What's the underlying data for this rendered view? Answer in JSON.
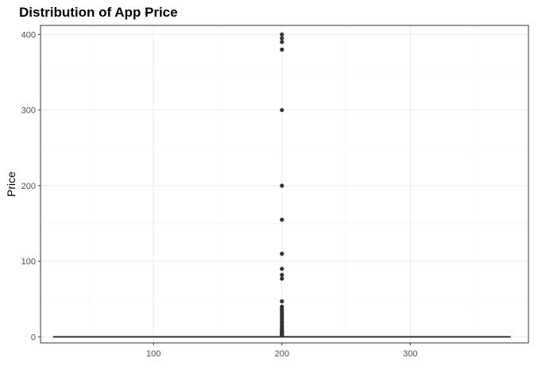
{
  "chart_data": {
    "type": "boxplot",
    "title": "Distribution of App Price",
    "xlabel": "",
    "ylabel": "Price",
    "x_ticks": [
      100,
      200,
      300
    ],
    "y_ticks": [
      0,
      100,
      200,
      300,
      400
    ],
    "xlim": [
      12,
      392
    ],
    "ylim": [
      -8,
      412
    ],
    "box": {
      "x_center": 200,
      "x_extent": [
        22,
        378
      ],
      "min": 0,
      "q1": 0,
      "median": 0,
      "q3": 0,
      "max": 0
    },
    "outliers": [
      400,
      395,
      390,
      380,
      300,
      200,
      155,
      110,
      90,
      82,
      77,
      47,
      40,
      37,
      35,
      32,
      30,
      28,
      25,
      23,
      20,
      18,
      15,
      13,
      11,
      9,
      8,
      7,
      6,
      5,
      4,
      3,
      2.5,
      2
    ],
    "grid": true,
    "colors": {
      "points": "#333333",
      "grid_major": "#ebebeb",
      "grid_minor": "#f4f4f4",
      "border": "#333333",
      "box_line": "#333333"
    }
  }
}
